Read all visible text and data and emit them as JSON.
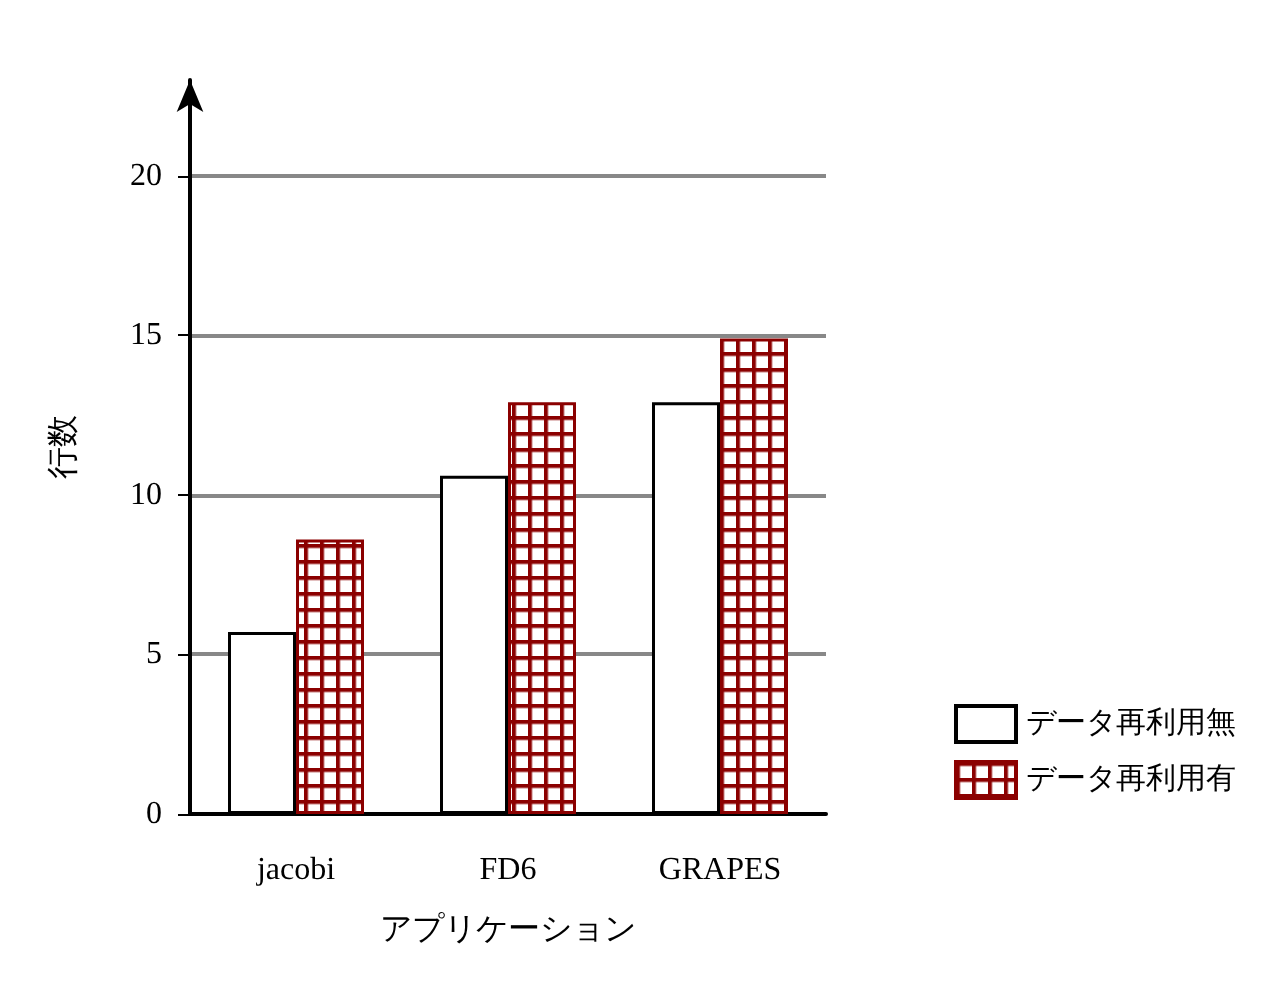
{
  "chart_data": {
    "type": "bar",
    "xlabel": "アプリケーション",
    "ylabel": "行数",
    "categories": [
      "jacobi",
      "FD6",
      "GRAPES"
    ],
    "series": [
      {
        "name": "データ再利用無",
        "color": "#ffffff",
        "values": [
          5.7,
          10.6,
          12.9
        ]
      },
      {
        "name": "データ再利用有",
        "color": "#8b0000",
        "values": [
          8.6,
          12.9,
          14.9
        ]
      }
    ],
    "ylim": [
      0,
      23
    ],
    "yticks": [
      0,
      5,
      10,
      15,
      20
    ],
    "grid": "y",
    "legend": "right"
  }
}
